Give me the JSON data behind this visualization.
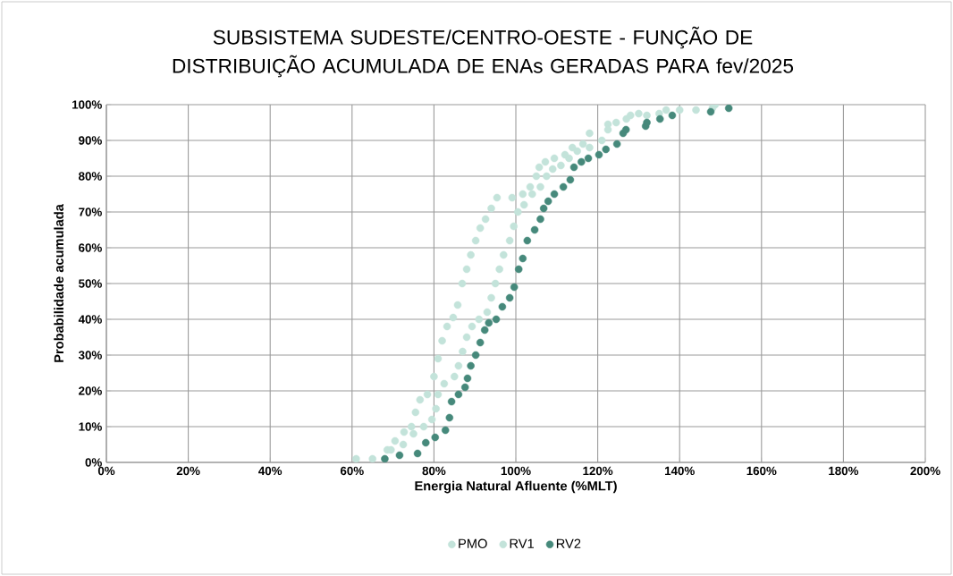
{
  "chart_data": {
    "type": "scatter",
    "title": "SUBSISTEMA SUDESTE/CENTRO-OESTE - FUNÇÃO DE DISTRIBUIÇÃO ACUMULADA DE ENAs GERADAS PARA fev/2025",
    "xlabel": "Energia Natural Afluente (%MLT)",
    "ylabel": "Probabilidade acumulada",
    "xlim": [
      0,
      200
    ],
    "ylim": [
      0,
      100
    ],
    "xticks": [
      {
        "value": 0,
        "label": "0%"
      },
      {
        "value": 20,
        "label": "20%"
      },
      {
        "value": 40,
        "label": "40%"
      },
      {
        "value": 60,
        "label": "60%"
      },
      {
        "value": 80,
        "label": "80%"
      },
      {
        "value": 100,
        "label": "100%"
      },
      {
        "value": 120,
        "label": "120%"
      },
      {
        "value": 140,
        "label": "140%"
      },
      {
        "value": 160,
        "label": "160%"
      },
      {
        "value": 180,
        "label": "180%"
      },
      {
        "value": 200,
        "label": "200%"
      }
    ],
    "yticks": [
      {
        "value": 0,
        "label": "0%"
      },
      {
        "value": 10,
        "label": "10%"
      },
      {
        "value": 20,
        "label": "20%"
      },
      {
        "value": 30,
        "label": "30%"
      },
      {
        "value": 40,
        "label": "40%"
      },
      {
        "value": 50,
        "label": "50%"
      },
      {
        "value": 60,
        "label": "60%"
      },
      {
        "value": 70,
        "label": "70%"
      },
      {
        "value": 80,
        "label": "80%"
      },
      {
        "value": 90,
        "label": "90%"
      },
      {
        "value": 100,
        "label": "100%"
      }
    ],
    "grid": true,
    "legend": "bottom",
    "marker": "circle",
    "series": [
      {
        "name": "PMO",
        "color": "#c3e3da",
        "x": [
          61,
          68.6,
          70.5,
          72.7,
          74.5,
          75.5,
          76.6,
          78.4,
          80,
          81,
          82,
          83.2,
          84.7,
          85.8,
          86.9,
          88,
          89,
          90.2,
          91.3,
          92.6,
          94,
          95.4,
          99.1,
          101.7,
          103.5,
          105,
          105.7,
          107.2,
          109.4,
          112,
          113.8,
          116.4,
          118,
          122.5,
          128,
          136.7,
          144,
          148.7
        ],
        "values": [
          1,
          3.5,
          6,
          8.5,
          10,
          14,
          17.5,
          19,
          24,
          29,
          34,
          38,
          40.5,
          44,
          50,
          54,
          58,
          62,
          65.5,
          68,
          71,
          74,
          74,
          75,
          77,
          80,
          82.5,
          84,
          85,
          86,
          88,
          89,
          92,
          94.5,
          97,
          98.5,
          null,
          100
        ]
      },
      {
        "name": "RV1",
        "color": "#c3e3da",
        "x": [
          65,
          69.5,
          72.5,
          75,
          77.5,
          79.5,
          80.5,
          81,
          82.5,
          85,
          86,
          87,
          88,
          89.3,
          91,
          93,
          94,
          95,
          96,
          97,
          98.5,
          99.5,
          100.5,
          102,
          104,
          106,
          107.5,
          109,
          111,
          113,
          115,
          118,
          121,
          122.5,
          124.5,
          127,
          130,
          132,
          135,
          140,
          144,
          148
        ],
        "values": [
          1,
          3.5,
          5,
          8,
          10,
          12,
          15,
          19,
          22,
          24,
          27,
          31,
          35,
          38,
          40,
          42,
          46,
          50,
          54,
          58,
          62,
          66,
          70,
          72,
          75,
          77,
          80,
          82,
          83,
          85,
          87,
          88,
          90,
          93,
          95,
          96,
          97.5,
          97,
          97.5,
          98.5,
          98.5,
          99
        ]
      },
      {
        "name": "RV2",
        "color": "#46897b",
        "x": [
          68,
          71.6,
          76,
          78,
          80.3,
          82.8,
          83.8,
          84.3,
          86,
          87.6,
          88.2,
          89,
          90.2,
          91.3,
          92.4,
          93.4,
          95.2,
          96.7,
          98.5,
          99.6,
          100.7,
          101.7,
          102.8,
          104.6,
          106,
          106.8,
          107.9,
          109.4,
          111.6,
          113.3,
          114.2,
          116,
          117.7,
          120.3,
          122,
          124.7,
          126.2,
          126.9,
          131.7,
          132,
          135.2,
          138.2,
          147.6,
          152
        ],
        "values": [
          1,
          2,
          2.5,
          5.5,
          7,
          9,
          12.5,
          17,
          19,
          21,
          23.5,
          27,
          30,
          33.5,
          37,
          39,
          40,
          43.5,
          46,
          49,
          54,
          57,
          62,
          65,
          68,
          71,
          73,
          75,
          77,
          79,
          82.5,
          84,
          85,
          86,
          87.5,
          89,
          92,
          93,
          94,
          95,
          96,
          97,
          98,
          99
        ]
      }
    ]
  }
}
